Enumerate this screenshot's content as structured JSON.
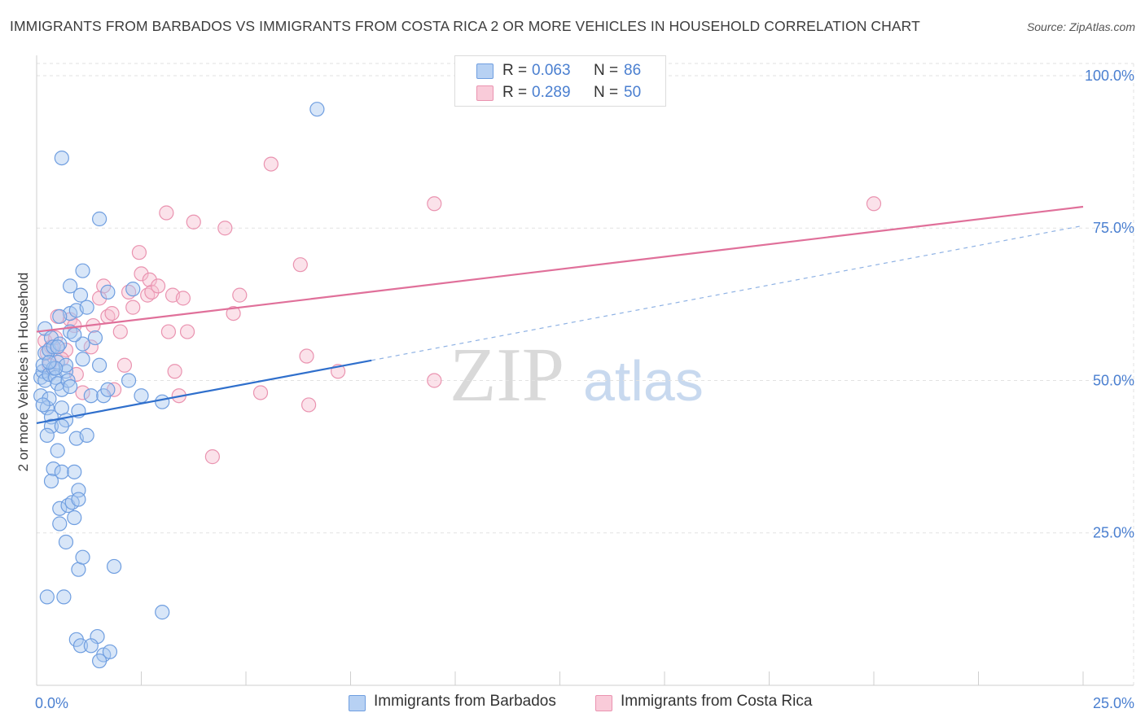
{
  "title": "IMMIGRANTS FROM BARBADOS VS IMMIGRANTS FROM COSTA RICA 2 OR MORE VEHICLES IN HOUSEHOLD CORRELATION CHART",
  "source": "Source: ZipAtlas.com",
  "watermark": {
    "zip": "ZIP",
    "atlas": "atlas"
  },
  "colors": {
    "blue_fill": "#a9c8f0",
    "blue_stroke": "#6f9ee0",
    "blue_line": "#2f6fcc",
    "pink_fill": "#f7bfd0",
    "pink_stroke": "#ea93b0",
    "pink_line": "#e0709a",
    "accent_text": "#4a7fd0"
  },
  "legend_top": [
    {
      "r_label": "R =",
      "r_value": "0.063",
      "n_label": "N =",
      "n_value": "86",
      "series": "Immigrants from Barbados"
    },
    {
      "r_label": "R =",
      "r_value": "0.289",
      "n_label": "N =",
      "n_value": "50",
      "series": "Immigrants from Costa Rica"
    }
  ],
  "legend_bottom": [
    {
      "label": "Immigrants from Barbados"
    },
    {
      "label": "Immigrants from Costa Rica"
    }
  ],
  "chart_data": {
    "type": "scatter",
    "title": "IMMIGRANTS FROM BARBADOS VS IMMIGRANTS FROM COSTA RICA 2 OR MORE VEHICLES IN HOUSEHOLD CORRELATION CHART",
    "xlabel": "",
    "ylabel": "2 or more Vehicles in Household",
    "xlim": [
      0,
      25
    ],
    "ylim": [
      0,
      102
    ],
    "x_ticks_labeled": [
      {
        "value": 0,
        "label": "0.0%"
      },
      {
        "value": 25,
        "label": "25.0%"
      }
    ],
    "y_ticks": [
      {
        "value": 25,
        "label": "25.0%"
      },
      {
        "value": 50,
        "label": "50.0%"
      },
      {
        "value": 75,
        "label": "75.0%"
      },
      {
        "value": 100,
        "label": "100.0%"
      }
    ],
    "grid": true,
    "series": [
      {
        "name": "Immigrants from Barbados",
        "color": "#6f9ee0",
        "points": [
          [
            0.1,
            47.5
          ],
          [
            0.1,
            50.5
          ],
          [
            0.15,
            51.5
          ],
          [
            0.15,
            52.5
          ],
          [
            0.2,
            54.5
          ],
          [
            0.2,
            50.0
          ],
          [
            0.2,
            58.5
          ],
          [
            0.25,
            45.5
          ],
          [
            0.3,
            47.0
          ],
          [
            0.3,
            51.0
          ],
          [
            0.3,
            55.0
          ],
          [
            0.35,
            44.0
          ],
          [
            0.35,
            57.0
          ],
          [
            0.4,
            55.5
          ],
          [
            0.4,
            52.0
          ],
          [
            0.45,
            50.5
          ],
          [
            0.5,
            53.0
          ],
          [
            0.5,
            49.5
          ],
          [
            0.55,
            56.0
          ],
          [
            0.6,
            48.5
          ],
          [
            0.6,
            45.5
          ],
          [
            0.7,
            51.5
          ],
          [
            0.7,
            43.5
          ],
          [
            0.75,
            50.0
          ],
          [
            0.8,
            58.0
          ],
          [
            0.8,
            61.0
          ],
          [
            0.8,
            65.5
          ],
          [
            0.95,
            61.5
          ],
          [
            1.05,
            64.0
          ],
          [
            1.1,
            68.0
          ],
          [
            1.2,
            62.0
          ],
          [
            1.4,
            57.0
          ],
          [
            1.1,
            56.0
          ],
          [
            0.8,
            49.0
          ],
          [
            1.0,
            45.0
          ],
          [
            1.3,
            47.5
          ],
          [
            1.5,
            52.5
          ],
          [
            1.6,
            47.5
          ],
          [
            1.7,
            48.5
          ],
          [
            2.2,
            50.0
          ],
          [
            2.5,
            47.5
          ],
          [
            3.0,
            46.5
          ],
          [
            0.35,
            42.5
          ],
          [
            0.5,
            38.5
          ],
          [
            0.6,
            42.5
          ],
          [
            0.95,
            40.5
          ],
          [
            1.2,
            41.0
          ],
          [
            0.4,
            35.5
          ],
          [
            0.35,
            33.5
          ],
          [
            0.6,
            35.0
          ],
          [
            0.9,
            35.0
          ],
          [
            1.0,
            32.0
          ],
          [
            0.55,
            29.0
          ],
          [
            0.75,
            29.5
          ],
          [
            0.85,
            30.0
          ],
          [
            1.0,
            30.5
          ],
          [
            0.9,
            27.5
          ],
          [
            0.55,
            26.5
          ],
          [
            0.7,
            23.5
          ],
          [
            1.0,
            19.0
          ],
          [
            1.1,
            21.0
          ],
          [
            1.85,
            19.5
          ],
          [
            0.25,
            14.5
          ],
          [
            0.65,
            14.5
          ],
          [
            3.0,
            12.0
          ],
          [
            0.95,
            7.5
          ],
          [
            1.45,
            8.0
          ],
          [
            1.05,
            6.5
          ],
          [
            1.3,
            6.5
          ],
          [
            1.6,
            5.0
          ],
          [
            1.75,
            5.5
          ],
          [
            1.5,
            4.0
          ],
          [
            0.25,
            41.0
          ],
          [
            0.15,
            46.0
          ],
          [
            6.7,
            94.5
          ],
          [
            0.6,
            86.5
          ],
          [
            1.5,
            76.5
          ],
          [
            1.7,
            64.5
          ],
          [
            2.3,
            65.0
          ],
          [
            0.7,
            52.5
          ],
          [
            0.45,
            52.0
          ],
          [
            0.55,
            60.5
          ],
          [
            0.3,
            53.0
          ],
          [
            0.9,
            57.5
          ],
          [
            1.1,
            53.5
          ],
          [
            0.5,
            55.5
          ]
        ]
      },
      {
        "name": "Immigrants from Costa Rica",
        "color": "#ea93b0",
        "points": [
          [
            0.2,
            56.5
          ],
          [
            0.25,
            54.5
          ],
          [
            0.35,
            55.5
          ],
          [
            0.45,
            57.0
          ],
          [
            0.5,
            60.5
          ],
          [
            0.7,
            55.0
          ],
          [
            0.8,
            60.0
          ],
          [
            0.9,
            59.0
          ],
          [
            0.95,
            51.0
          ],
          [
            1.1,
            48.0
          ],
          [
            1.3,
            55.5
          ],
          [
            1.35,
            59.0
          ],
          [
            1.5,
            63.5
          ],
          [
            1.6,
            65.5
          ],
          [
            1.7,
            60.5
          ],
          [
            1.8,
            61.0
          ],
          [
            1.85,
            48.5
          ],
          [
            2.0,
            58.0
          ],
          [
            2.1,
            52.5
          ],
          [
            2.2,
            64.5
          ],
          [
            2.3,
            62.0
          ],
          [
            2.45,
            71.0
          ],
          [
            2.5,
            67.5
          ],
          [
            2.65,
            64.0
          ],
          [
            2.7,
            66.5
          ],
          [
            2.75,
            64.5
          ],
          [
            2.9,
            65.5
          ],
          [
            3.1,
            77.5
          ],
          [
            3.15,
            58.0
          ],
          [
            3.25,
            64.0
          ],
          [
            3.3,
            51.5
          ],
          [
            3.4,
            47.5
          ],
          [
            3.5,
            63.5
          ],
          [
            3.6,
            58.0
          ],
          [
            3.75,
            76.0
          ],
          [
            4.2,
            37.5
          ],
          [
            4.5,
            75.0
          ],
          [
            4.7,
            61.0
          ],
          [
            4.85,
            64.0
          ],
          [
            5.35,
            48.0
          ],
          [
            5.6,
            85.5
          ],
          [
            6.3,
            69.0
          ],
          [
            6.45,
            54.0
          ],
          [
            6.5,
            46.0
          ],
          [
            7.2,
            51.5
          ],
          [
            9.5,
            50.0
          ],
          [
            9.5,
            79.0
          ],
          [
            20.0,
            79.0
          ],
          [
            0.3,
            52.5
          ],
          [
            0.6,
            53.5
          ]
        ]
      }
    ],
    "trend_lines": [
      {
        "series": "Immigrants from Barbados",
        "x_start": 0,
        "y_start": 43.0,
        "x_end": 8.0,
        "y_end": 53.3,
        "style": "solid",
        "dashed_extension": {
          "x_end": 25,
          "y_end": 75.4
        }
      },
      {
        "series": "Immigrants from Costa Rica",
        "x_start": 0,
        "y_start": 58.0,
        "x_end": 25,
        "y_end": 78.5,
        "style": "solid"
      }
    ]
  }
}
